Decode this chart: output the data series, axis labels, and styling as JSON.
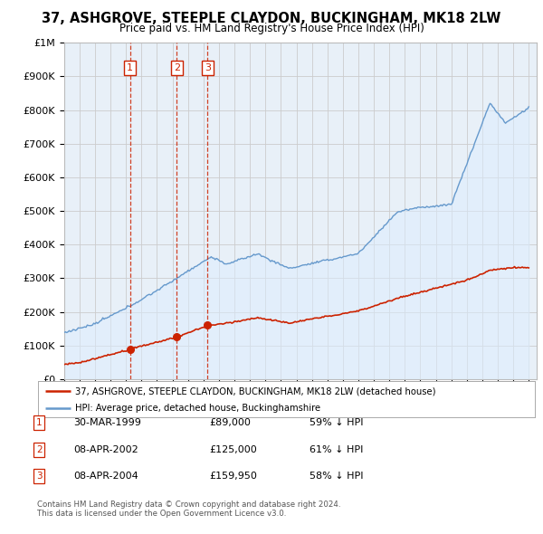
{
  "title": "37, ASHGROVE, STEEPLE CLAYDON, BUCKINGHAM, MK18 2LW",
  "subtitle": "Price paid vs. HM Land Registry's House Price Index (HPI)",
  "legend_line1": "37, ASHGROVE, STEEPLE CLAYDON, BUCKINGHAM, MK18 2LW (detached house)",
  "legend_line2": "HPI: Average price, detached house, Buckinghamshire",
  "footer1": "Contains HM Land Registry data © Crown copyright and database right 2024.",
  "footer2": "This data is licensed under the Open Government Licence v3.0.",
  "sales": [
    {
      "num": 1,
      "date": "30-MAR-1999",
      "price": 89000,
      "year": 1999.25,
      "pct": "59%",
      "dir": "↓"
    },
    {
      "num": 2,
      "date": "08-APR-2002",
      "price": 125000,
      "year": 2002.27,
      "pct": "61%",
      "dir": "↓"
    },
    {
      "num": 3,
      "date": "08-APR-2004",
      "price": 159950,
      "year": 2004.27,
      "pct": "58%",
      "dir": "↓"
    }
  ],
  "hpi_color": "#6699cc",
  "hpi_fill_color": "#ddeeff",
  "sale_color": "#cc2200",
  "marker_box_color": "#cc2200",
  "background_color": "#ffffff",
  "plot_bg_color": "#e8f0f8",
  "grid_color": "#cccccc",
  "ylim": [
    0,
    1000000
  ],
  "xlim_start": 1995,
  "xlim_end": 2025.5
}
